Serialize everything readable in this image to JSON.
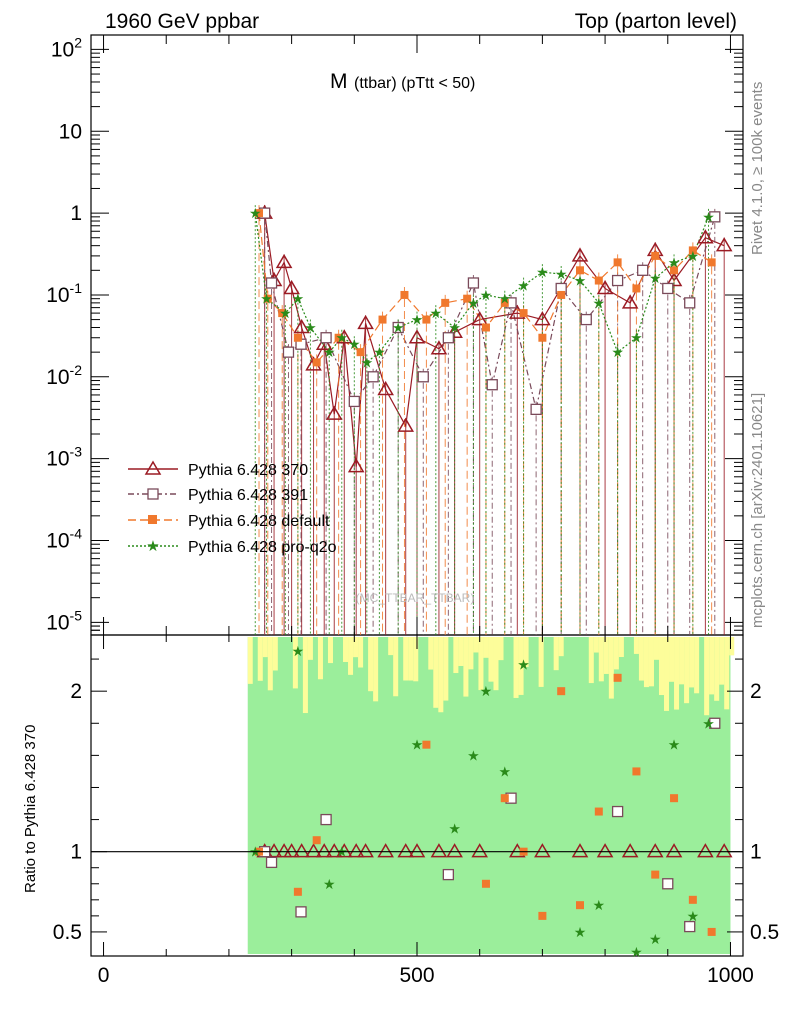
{
  "header": {
    "left": "1960 GeV ppbar",
    "right": "Top (parton level)"
  },
  "side": {
    "rivet": "Rivet 4.1.0, ≥ 100k events",
    "mcplots": "mcplots.cern.ch [arXiv:2401.10621]"
  },
  "watermark": "(MC_TTBAR_TTBAR)",
  "chart_data": {
    "type": "scatter",
    "title": "M (ttbar) (pTtt < 50)",
    "title_main": "M",
    "title_sub": "(ttbar) (pTtt < 50)",
    "xlabel": "",
    "ylabel": "",
    "ratio_ylabel": "Ratio to Pythia 6.428 370",
    "xlim": [
      -20,
      1020
    ],
    "ylim": [
      7e-06,
      150
    ],
    "yscale": "log",
    "ratio_ylim": [
      0.35,
      2.35
    ],
    "x_ticks": [
      0,
      500,
      1000
    ],
    "x_tick_labels": [
      "0",
      "500",
      "1000"
    ],
    "y_tick_labels": [
      "10^2",
      "10",
      "1",
      "10^-1",
      "10^-2",
      "10^-3",
      "10^-4",
      "10^-5"
    ],
    "ratio_tick_labels": [
      "2",
      "1",
      "0.5"
    ],
    "legend_position": "middle-left",
    "series": [
      {
        "name": "Pythia 6.428 370",
        "color": "#9b1b24",
        "marker": "triangle-open",
        "points": [
          [
            257,
            1.0
          ],
          [
            272,
            0.15
          ],
          [
            288,
            0.25
          ],
          [
            300,
            0.12
          ],
          [
            316,
            0.04
          ],
          [
            335,
            0.014
          ],
          [
            352,
            0.025
          ],
          [
            368,
            0.0035
          ],
          [
            384,
            0.03
          ],
          [
            403,
            0.0008
          ],
          [
            418,
            0.045
          ],
          [
            450,
            0.007
          ],
          [
            482,
            0.0025
          ],
          [
            500,
            0.03
          ],
          [
            535,
            0.022
          ],
          [
            560,
            0.035
          ],
          [
            600,
            0.05
          ],
          [
            660,
            0.06
          ],
          [
            700,
            0.05
          ],
          [
            760,
            0.3
          ],
          [
            800,
            0.12
          ],
          [
            840,
            0.08
          ],
          [
            880,
            0.35
          ],
          [
            910,
            0.15
          ],
          [
            960,
            0.5
          ],
          [
            990,
            0.4
          ]
        ]
      },
      {
        "name": "Pythia 6.428 391",
        "color": "#7a4a5a",
        "marker": "square-open",
        "points": [
          [
            257,
            1.0
          ],
          [
            268,
            0.14
          ],
          [
            295,
            0.02
          ],
          [
            315,
            0.025
          ],
          [
            355,
            0.03
          ],
          [
            400,
            0.005
          ],
          [
            430,
            0.01
          ],
          [
            470,
            0.04
          ],
          [
            510,
            0.01
          ],
          [
            550,
            0.03
          ],
          [
            590,
            0.14
          ],
          [
            620,
            0.008
          ],
          [
            650,
            0.08
          ],
          [
            690,
            0.004
          ],
          [
            730,
            0.12
          ],
          [
            770,
            0.05
          ],
          [
            820,
            0.15
          ],
          [
            860,
            0.2
          ],
          [
            900,
            0.12
          ],
          [
            935,
            0.08
          ],
          [
            975,
            0.9
          ]
        ]
      },
      {
        "name": "Pythia 6.428 default",
        "color": "#f0782d",
        "marker": "square-filled",
        "points": [
          [
            248,
            1.0
          ],
          [
            262,
            0.09
          ],
          [
            285,
            0.06
          ],
          [
            310,
            0.03
          ],
          [
            340,
            0.015
          ],
          [
            375,
            0.03
          ],
          [
            410,
            0.02
          ],
          [
            445,
            0.05
          ],
          [
            480,
            0.1
          ],
          [
            515,
            0.05
          ],
          [
            545,
            0.08
          ],
          [
            580,
            0.09
          ],
          [
            610,
            0.04
          ],
          [
            640,
            0.08
          ],
          [
            670,
            0.06
          ],
          [
            700,
            0.03
          ],
          [
            730,
            0.1
          ],
          [
            760,
            0.2
          ],
          [
            790,
            0.15
          ],
          [
            820,
            0.25
          ],
          [
            850,
            0.12
          ],
          [
            880,
            0.3
          ],
          [
            910,
            0.2
          ],
          [
            940,
            0.35
          ],
          [
            970,
            0.25
          ]
        ]
      },
      {
        "name": "Pythia 6.428 pro-q2o",
        "color": "#2a8a1a",
        "marker": "star",
        "points": [
          [
            242,
            1.0
          ],
          [
            260,
            0.09
          ],
          [
            290,
            0.06
          ],
          [
            310,
            0.09
          ],
          [
            330,
            0.04
          ],
          [
            360,
            0.02
          ],
          [
            380,
            0.03
          ],
          [
            400,
            0.025
          ],
          [
            420,
            0.015
          ],
          [
            440,
            0.02
          ],
          [
            470,
            0.04
          ],
          [
            500,
            0.05
          ],
          [
            530,
            0.06
          ],
          [
            560,
            0.04
          ],
          [
            590,
            0.08
          ],
          [
            610,
            0.1
          ],
          [
            640,
            0.09
          ],
          [
            670,
            0.13
          ],
          [
            700,
            0.19
          ],
          [
            730,
            0.18
          ],
          [
            760,
            0.15
          ],
          [
            790,
            0.08
          ],
          [
            820,
            0.02
          ],
          [
            850,
            0.03
          ],
          [
            880,
            0.16
          ],
          [
            910,
            0.25
          ],
          [
            940,
            0.3
          ],
          [
            965,
            0.9
          ]
        ]
      }
    ]
  }
}
